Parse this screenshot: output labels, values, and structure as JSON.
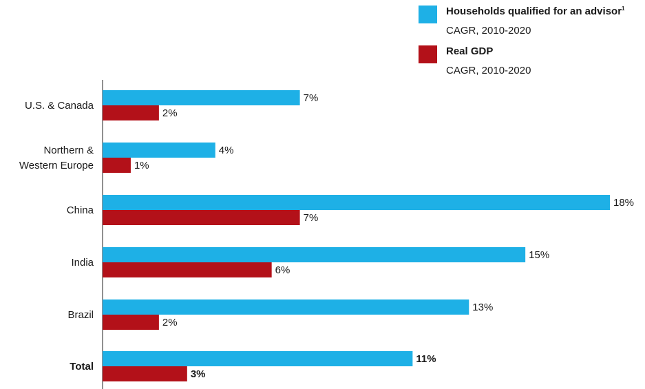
{
  "legend": {
    "items": [
      {
        "label": "Households qualified for an advisor",
        "footnote": "1",
        "sublabel": "CAGR, 2010-2020",
        "color": "#1eb0e6"
      },
      {
        "label": "Real GDP",
        "footnote": "",
        "sublabel": "CAGR, 2010-2020",
        "color": "#b31119"
      }
    ]
  },
  "chart_data": {
    "type": "bar",
    "orientation": "horizontal",
    "categories": [
      "U.S. & Canada",
      "Northern & Western Europe",
      "China",
      "India",
      "Brazil",
      "Total"
    ],
    "category_lines": [
      [
        "U.S. & Canada"
      ],
      [
        "Northern &",
        "Western Europe"
      ],
      [
        "China"
      ],
      [
        "India"
      ],
      [
        "Brazil"
      ],
      [
        "Total"
      ]
    ],
    "series": [
      {
        "name": "Households qualified for an advisor",
        "color": "#1eb0e6",
        "values": [
          7,
          4,
          18,
          15,
          13,
          11
        ],
        "labels": [
          "7%",
          "4%",
          "18%",
          "15%",
          "13%",
          "11%"
        ]
      },
      {
        "name": "Real GDP",
        "color": "#b31119",
        "values": [
          2,
          1,
          7,
          6,
          2,
          3
        ],
        "labels": [
          "2%",
          "1%",
          "7%",
          "6%",
          "2%",
          "3%"
        ]
      }
    ],
    "xlim": [
      0,
      18
    ],
    "unit": "%",
    "bold_categories": [
      "Total"
    ],
    "grid": false,
    "legend_position": "top-right"
  }
}
